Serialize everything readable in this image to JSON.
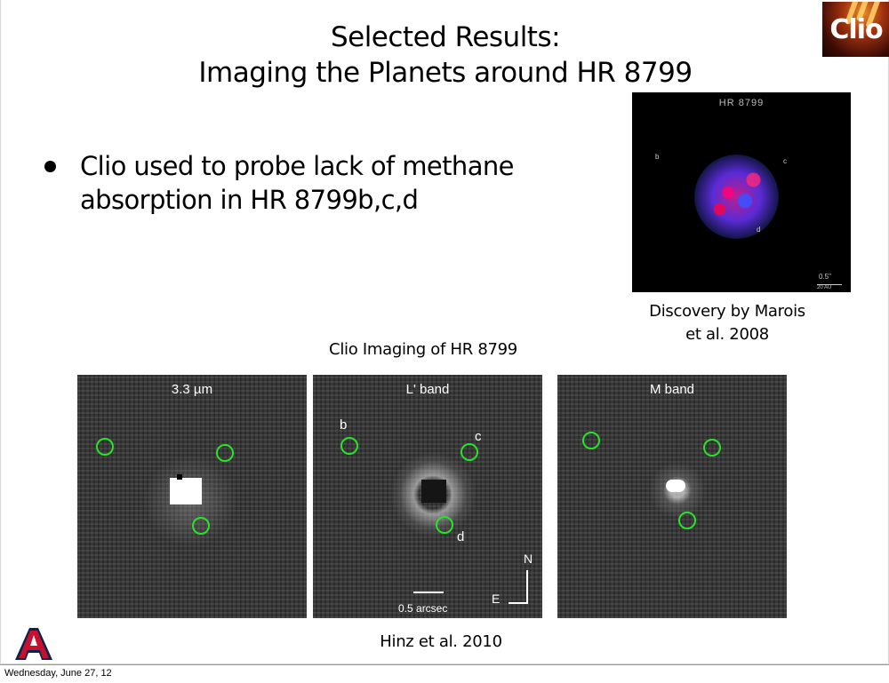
{
  "slide": {
    "title_line1": "Selected Results:",
    "title_line2": "Imaging the Planets around HR 8799",
    "logo_text": "Clio",
    "bullets": [
      {
        "line1": "Clio used to probe lack of methane",
        "line2": "absorption in HR 8799b,c,d"
      }
    ],
    "discovery_image": {
      "header": "HR 8799",
      "labels": {
        "b": "b",
        "c": "c",
        "d": "d"
      },
      "scale_label": "0.5\"",
      "scale_sub": "20 AU"
    },
    "discovery_caption_line1": "Discovery by Marois",
    "discovery_caption_line2": "et al. 2008",
    "clio_caption": "Clio Imaging of HR 8799",
    "panels": [
      {
        "title": "3.3 µm"
      },
      {
        "title": "L' band",
        "labels": {
          "b": "b",
          "c": "c",
          "d": "d"
        },
        "scale": "0.5 arcsec",
        "compass_n": "N",
        "compass_e": "E"
      },
      {
        "title": "M band"
      }
    ],
    "credit": "Hinz et al. 2010"
  },
  "footer": {
    "date": "Wednesday, June 27, 12"
  },
  "colors": {
    "ring": "#29e22b",
    "ua_red": "#c8102e",
    "ua_blue": "#0c234b"
  }
}
